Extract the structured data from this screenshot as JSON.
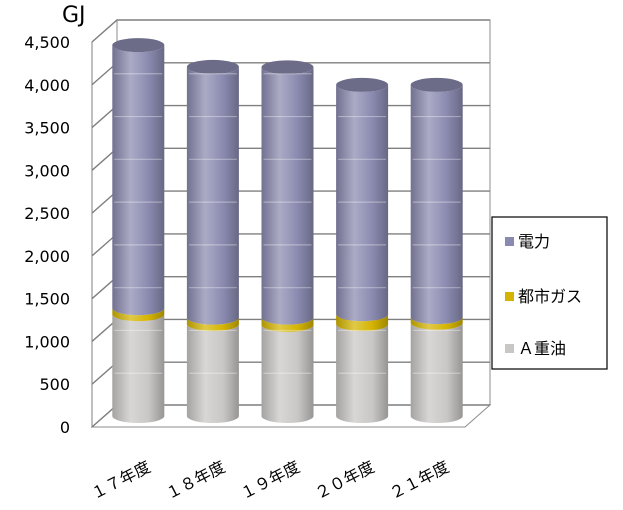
{
  "chart_data": {
    "type": "bar",
    "stacked": true,
    "style": "3d-cylinder",
    "unit": "GJ",
    "categories": [
      "１７年度",
      "１８年度",
      "１９年度",
      "２０年度",
      "２１年度"
    ],
    "series": [
      {
        "name": "Ａ重油",
        "color": "#c9c7c5",
        "values": [
          1190,
          1075,
          1065,
          1075,
          1090
        ]
      },
      {
        "name": "都市ガス",
        "color": "#d4b400",
        "values": [
          70,
          75,
          85,
          115,
          65
        ]
      },
      {
        "name": "電力",
        "color": "#8a8ab0",
        "values": [
          3075,
          2930,
          2925,
          2680,
          2715
        ]
      }
    ],
    "legend_order": [
      "電力",
      "都市ガス",
      "Ａ重油"
    ],
    "legend_position": "right",
    "yticks": [
      "0",
      "500",
      "1,000",
      "1,500",
      "2,000",
      "2,500",
      "3,000",
      "3,500",
      "4,000",
      "4,500"
    ],
    "ylim": [
      0,
      4500
    ],
    "grid": true
  }
}
